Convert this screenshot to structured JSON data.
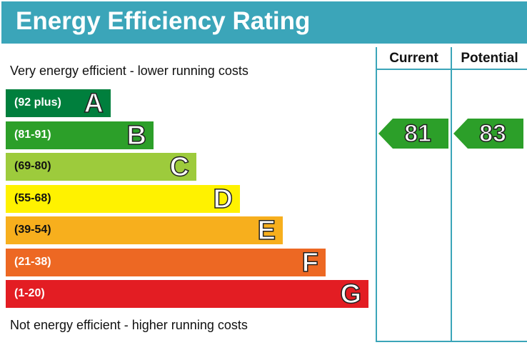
{
  "title": "Energy Efficiency Rating",
  "top_caption": "Very energy efficient - lower running costs",
  "bottom_caption": "Not energy efficient - higher running costs",
  "columns": {
    "current": "Current",
    "potential": "Potential"
  },
  "chart_data": {
    "type": "bar",
    "title": "Energy Efficiency Rating",
    "bands": [
      {
        "letter": "A",
        "range": "(92 plus)",
        "color": "#007f3d"
      },
      {
        "letter": "B",
        "range": "(81-91)",
        "color": "#2c9f29"
      },
      {
        "letter": "C",
        "range": "(69-80)",
        "color": "#9dcb3c"
      },
      {
        "letter": "D",
        "range": "(55-68)",
        "color": "#fff200"
      },
      {
        "letter": "E",
        "range": "(39-54)",
        "color": "#f7af1d"
      },
      {
        "letter": "F",
        "range": "(21-38)",
        "color": "#ed6823"
      },
      {
        "letter": "G",
        "range": "(1-20)",
        "color": "#e31d23"
      }
    ],
    "current": {
      "value": "81",
      "band": "B"
    },
    "potential": {
      "value": "83",
      "band": "B"
    }
  },
  "colors": {
    "header": "#3ba5b9"
  }
}
